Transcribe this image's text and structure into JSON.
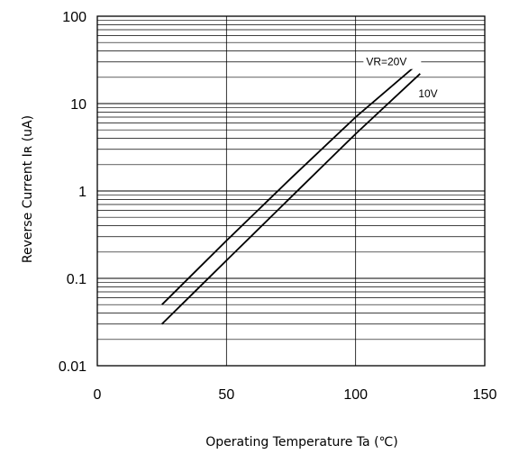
{
  "chart_data": {
    "type": "line",
    "title": "",
    "xlabel": "Operating Temperature   Ta (℃)",
    "ylabel": "Reverse Current  Iʀ (uA)",
    "xscale": "linear",
    "yscale": "log",
    "xlim": [
      0,
      150
    ],
    "ylim": [
      0.01,
      100
    ],
    "x_ticks": [
      0,
      50,
      100,
      150
    ],
    "x_tick_labels": [
      "0",
      "50",
      "100",
      "150"
    ],
    "y_ticks": [
      0.01,
      0.1,
      1,
      10,
      100
    ],
    "y_tick_labels": [
      "0.01",
      "0.1",
      "1",
      "10",
      "100"
    ],
    "grid": true,
    "legend": "inline labels at top-right",
    "line_color": "#000000",
    "series": [
      {
        "name": "VR=20V",
        "x": [
          25,
          50,
          75,
          100,
          125
        ],
        "y": [
          0.05,
          0.27,
          1.4,
          7,
          30
        ]
      },
      {
        "name": "10V",
        "x": [
          25,
          50,
          75,
          100,
          125
        ],
        "y": [
          0.03,
          0.16,
          0.85,
          4.5,
          22
        ]
      }
    ]
  }
}
